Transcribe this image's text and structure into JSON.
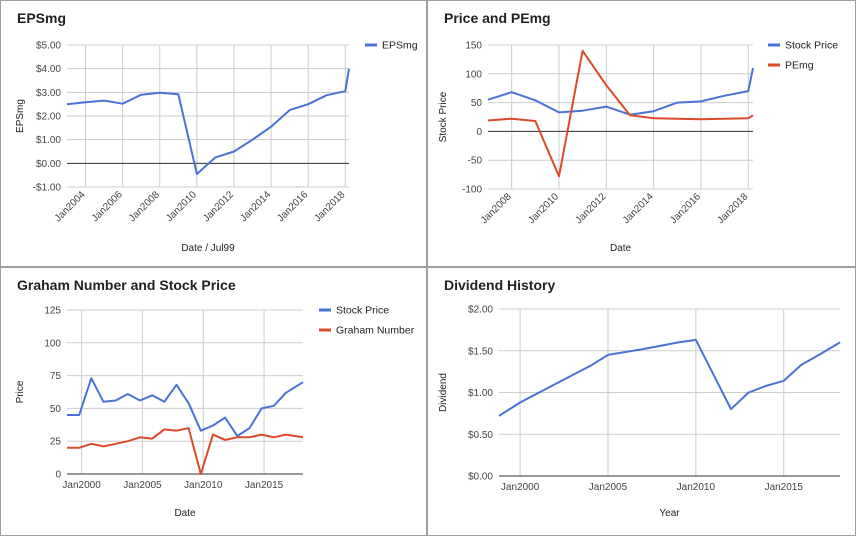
{
  "colors": {
    "blue": "#4a72d6",
    "red": "#dc4a2a",
    "grid": "#cccccc",
    "zero": "#333333"
  },
  "chart_data": [
    {
      "type": "line",
      "title": "EPSmg",
      "xlabel": "Date / Jul99",
      "ylabel": "EPSmg",
      "xlim": [
        2003,
        2018.2
      ],
      "ylim": [
        -1,
        5
      ],
      "y_ticks": [
        {
          "v": 5,
          "label": "$5.00"
        },
        {
          "v": 4,
          "label": "$4.00"
        },
        {
          "v": 3,
          "label": "$3.00"
        },
        {
          "v": 2,
          "label": "$2.00"
        },
        {
          "v": 1,
          "label": "$1.00"
        },
        {
          "v": 0,
          "label": "$0.00"
        },
        {
          "v": -1,
          "label": "-$1.00"
        }
      ],
      "x_ticks": [
        {
          "v": 2004,
          "label": "Jan2004"
        },
        {
          "v": 2006,
          "label": "Jan2006"
        },
        {
          "v": 2008,
          "label": "Jan2008"
        },
        {
          "v": 2010,
          "label": "Jan2010"
        },
        {
          "v": 2012,
          "label": "Jan2012"
        },
        {
          "v": 2014,
          "label": "Jan2014"
        },
        {
          "v": 2016,
          "label": "Jan2016"
        },
        {
          "v": 2018,
          "label": "Jan2018"
        }
      ],
      "zero_line": true,
      "legend_position": "top-right",
      "series": [
        {
          "name": "EPSmg",
          "color": "blue",
          "x": [
            2003,
            2004,
            2005,
            2006,
            2007,
            2008,
            2009,
            2010,
            2011,
            2012,
            2013,
            2014,
            2015,
            2016,
            2017,
            2018,
            2018.2
          ],
          "values": [
            2.5,
            2.58,
            2.65,
            2.52,
            2.9,
            2.98,
            2.92,
            -0.45,
            0.25,
            0.5,
            1.0,
            1.55,
            2.25,
            2.5,
            2.88,
            3.05,
            4.0
          ]
        }
      ]
    },
    {
      "type": "line",
      "title": "Price and PEmg",
      "xlabel": "Date",
      "ylabel": "Stock Price",
      "xlim": [
        2007,
        2018.2
      ],
      "ylim": [
        -100,
        150
      ],
      "y_ticks": [
        {
          "v": 150,
          "label": "150"
        },
        {
          "v": 100,
          "label": "100"
        },
        {
          "v": 50,
          "label": "50"
        },
        {
          "v": 0,
          "label": "0"
        },
        {
          "v": -50,
          "label": "-50"
        },
        {
          "v": -100,
          "label": "-100"
        }
      ],
      "x_ticks": [
        {
          "v": 2008,
          "label": "Jan2008"
        },
        {
          "v": 2010,
          "label": "Jan2010"
        },
        {
          "v": 2012,
          "label": "Jan2012"
        },
        {
          "v": 2014,
          "label": "Jan2014"
        },
        {
          "v": 2016,
          "label": "Jan2016"
        },
        {
          "v": 2018,
          "label": "Jan2018"
        }
      ],
      "zero_line": true,
      "legend_position": "top-right",
      "series": [
        {
          "name": "Stock Price",
          "color": "blue",
          "x": [
            2007,
            2008,
            2009,
            2010,
            2011,
            2012,
            2013,
            2014,
            2015,
            2016,
            2017,
            2018,
            2018.2
          ],
          "values": [
            55,
            68,
            54,
            33,
            36,
            43,
            29,
            35,
            50,
            52,
            62,
            70,
            110
          ]
        },
        {
          "name": "PEmg",
          "color": "red",
          "x": [
            2007,
            2008,
            2009,
            2010,
            2011,
            2012,
            2013,
            2014,
            2015,
            2016,
            2017,
            2018,
            2018.2
          ],
          "values": [
            19,
            22,
            18,
            -78,
            140,
            80,
            28,
            23,
            22,
            21,
            22,
            23,
            28
          ]
        }
      ]
    },
    {
      "type": "line",
      "title": "Graham Number and Stock Price",
      "xlabel": "Date",
      "ylabel": "Price",
      "xlim": [
        1998.8,
        2018.2
      ],
      "ylim": [
        0,
        125
      ],
      "y_ticks": [
        {
          "v": 125,
          "label": "125"
        },
        {
          "v": 100,
          "label": "100"
        },
        {
          "v": 75,
          "label": "75"
        },
        {
          "v": 50,
          "label": "50"
        },
        {
          "v": 25,
          "label": "25"
        },
        {
          "v": 0,
          "label": "0"
        }
      ],
      "x_ticks": [
        {
          "v": 2000,
          "label": "Jan2000"
        },
        {
          "v": 2005,
          "label": "Jan2005"
        },
        {
          "v": 2010,
          "label": "Jan2010"
        },
        {
          "v": 2015,
          "label": "Jan2015"
        }
      ],
      "zero_line": true,
      "legend_position": "top-right",
      "series": [
        {
          "name": "Stock Price",
          "color": "blue",
          "x": [
            1998.8,
            1999.8,
            2000.8,
            2001.8,
            2002.8,
            2003.8,
            2004.8,
            2005.8,
            2006.8,
            2007.8,
            2008.8,
            2009.8,
            2010.8,
            2011.8,
            2012.8,
            2013.8,
            2014.8,
            2015.8,
            2016.8,
            2018.2
          ],
          "values": [
            45,
            45,
            73,
            55,
            56,
            61,
            56,
            60,
            55,
            68,
            54,
            33,
            37,
            43,
            29,
            35,
            50,
            52,
            62,
            70
          ]
        },
        {
          "name": "Graham Number",
          "color": "red",
          "x": [
            1998.8,
            1999.8,
            2000.8,
            2001.8,
            2002.8,
            2003.8,
            2004.8,
            2005.8,
            2006.8,
            2007.8,
            2008.8,
            2009.8,
            2010.8,
            2011.8,
            2012.8,
            2013.8,
            2014.8,
            2015.8,
            2016.8,
            2018.2
          ],
          "values": [
            20,
            20,
            23,
            21,
            23,
            25,
            28,
            27,
            34,
            33,
            35,
            0,
            30,
            26,
            28,
            28,
            30,
            28,
            30,
            28
          ]
        }
      ]
    },
    {
      "type": "line",
      "title": "Dividend History",
      "xlabel": "Year",
      "ylabel": "Dividend",
      "xlim": [
        1998.8,
        2018.2
      ],
      "ylim": [
        0,
        2
      ],
      "y_ticks": [
        {
          "v": 2,
          "label": "$2.00"
        },
        {
          "v": 1.5,
          "label": "$1.50"
        },
        {
          "v": 1,
          "label": "$1.00"
        },
        {
          "v": 0.5,
          "label": "$0.50"
        },
        {
          "v": 0,
          "label": "$0.00"
        }
      ],
      "x_ticks": [
        {
          "v": 2000,
          "label": "Jan2000"
        },
        {
          "v": 2005,
          "label": "Jan2005"
        },
        {
          "v": 2010,
          "label": "Jan2010"
        },
        {
          "v": 2015,
          "label": "Jan2015"
        }
      ],
      "zero_line": true,
      "legend_position": "none",
      "series": [
        {
          "name": "",
          "color": "blue",
          "x": [
            1998.8,
            2000,
            2002,
            2004,
            2005,
            2007,
            2009,
            2010,
            2012,
            2013,
            2014,
            2015,
            2016,
            2017,
            2018.2
          ],
          "values": [
            0.72,
            0.88,
            1.1,
            1.32,
            1.45,
            1.52,
            1.6,
            1.63,
            0.8,
            1.0,
            1.08,
            1.14,
            1.33,
            1.45,
            1.6
          ]
        }
      ]
    }
  ]
}
